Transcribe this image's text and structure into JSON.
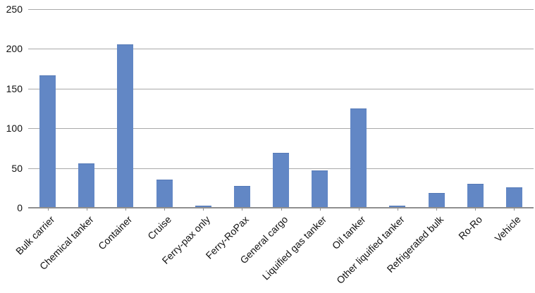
{
  "chart_data": {
    "type": "bar",
    "title": "",
    "xlabel": "",
    "ylabel": "",
    "categories": [
      "Bulk carrier",
      "Chemical tanker",
      "Container",
      "Cruise",
      "Ferry-pax only",
      "Ferry-RoPax",
      "General cargo",
      "Liquified gas tanker",
      "Oil tanker",
      "Other liquified tanker",
      "Refrigerated bulk",
      "Ro-Ro",
      "Vehicle"
    ],
    "values": [
      166,
      55,
      205,
      35,
      1,
      27,
      68,
      46,
      124,
      1,
      18,
      29,
      25
    ],
    "ylim": [
      0,
      250
    ],
    "yticks": [
      0,
      50,
      100,
      150,
      200,
      250
    ],
    "grid": true,
    "legend": "none",
    "colors": {
      "bar": "#6287c5",
      "bar_edge": "#5579b6",
      "gridline": "#a9a9a9",
      "axis": "#8f8f8f",
      "text": "#111111"
    }
  }
}
